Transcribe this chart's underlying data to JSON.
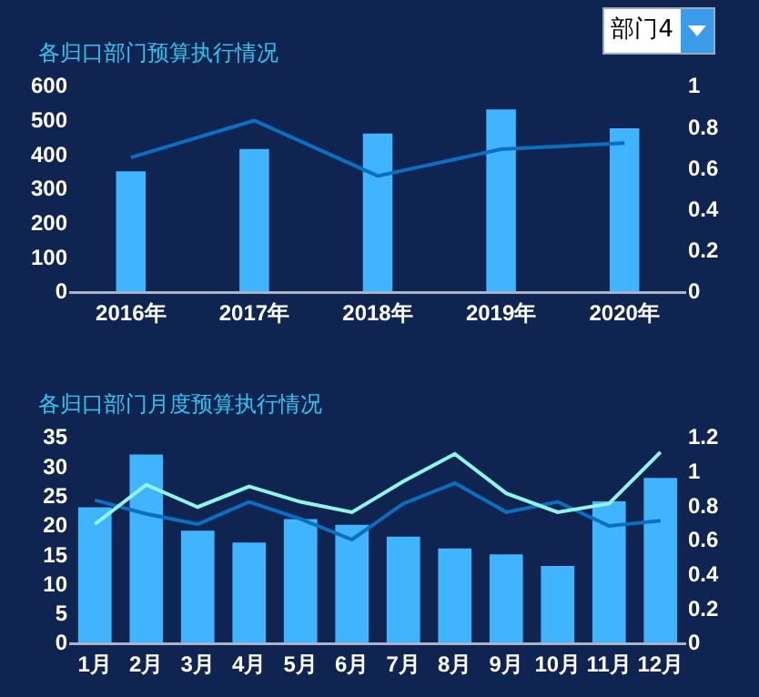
{
  "chart_data": [
    {
      "type": "bar",
      "title": "各归口部门预算执行情况",
      "annotations": [
        "部门4"
      ],
      "categories": [
        "2016年",
        "2017年",
        "2018年",
        "2019年",
        "2020年"
      ],
      "series": [
        {
          "color": "#40b4ff",
          "values": [
            350,
            415,
            460,
            530,
            475
          ]
        },
        {
          "type": "line",
          "axis": "y2",
          "color": "#0a6fc0",
          "values": [
            0.65,
            0.83,
            0.56,
            0.69,
            0.72
          ]
        }
      ],
      "ylim": [
        0,
        600
      ],
      "yticks": [
        0,
        100,
        200,
        300,
        400,
        500,
        600
      ],
      "y2lim": [
        0,
        1
      ],
      "y2ticks": [
        0,
        0.2,
        0.4,
        0.6,
        0.8,
        1
      ],
      "marker": "none"
    },
    {
      "type": "bar",
      "title": "各归口部门月度预算执行情况",
      "categories": [
        "1月",
        "2月",
        "3月",
        "4月",
        "5月",
        "6月",
        "7月",
        "8月",
        "9月",
        "10月",
        "11月",
        "12月"
      ],
      "series": [
        {
          "color": "#40b4ff",
          "values": [
            23,
            32,
            19,
            17,
            21,
            20,
            18,
            16,
            15,
            13,
            24,
            28
          ]
        },
        {
          "type": "line",
          "axis": "y2",
          "color": "#0a6fc0",
          "values": [
            0.83,
            0.75,
            0.69,
            0.82,
            0.72,
            0.6,
            0.81,
            0.93,
            0.76,
            0.82,
            0.68,
            0.71
          ]
        },
        {
          "type": "line",
          "axis": "y2",
          "color": "#8ff5e8",
          "values": [
            0.69,
            0.92,
            0.79,
            0.91,
            0.82,
            0.76,
            0.94,
            1.1,
            0.87,
            0.76,
            0.81,
            1.11
          ]
        }
      ],
      "ylim": [
        0,
        35
      ],
      "yticks": [
        0,
        5,
        10,
        15,
        20,
        25,
        30,
        35
      ],
      "y2lim": [
        0,
        1.2
      ],
      "y2ticks": [
        0,
        0.2,
        0.4,
        0.6,
        0.8,
        1,
        1.2
      ],
      "marker": "none"
    }
  ]
}
